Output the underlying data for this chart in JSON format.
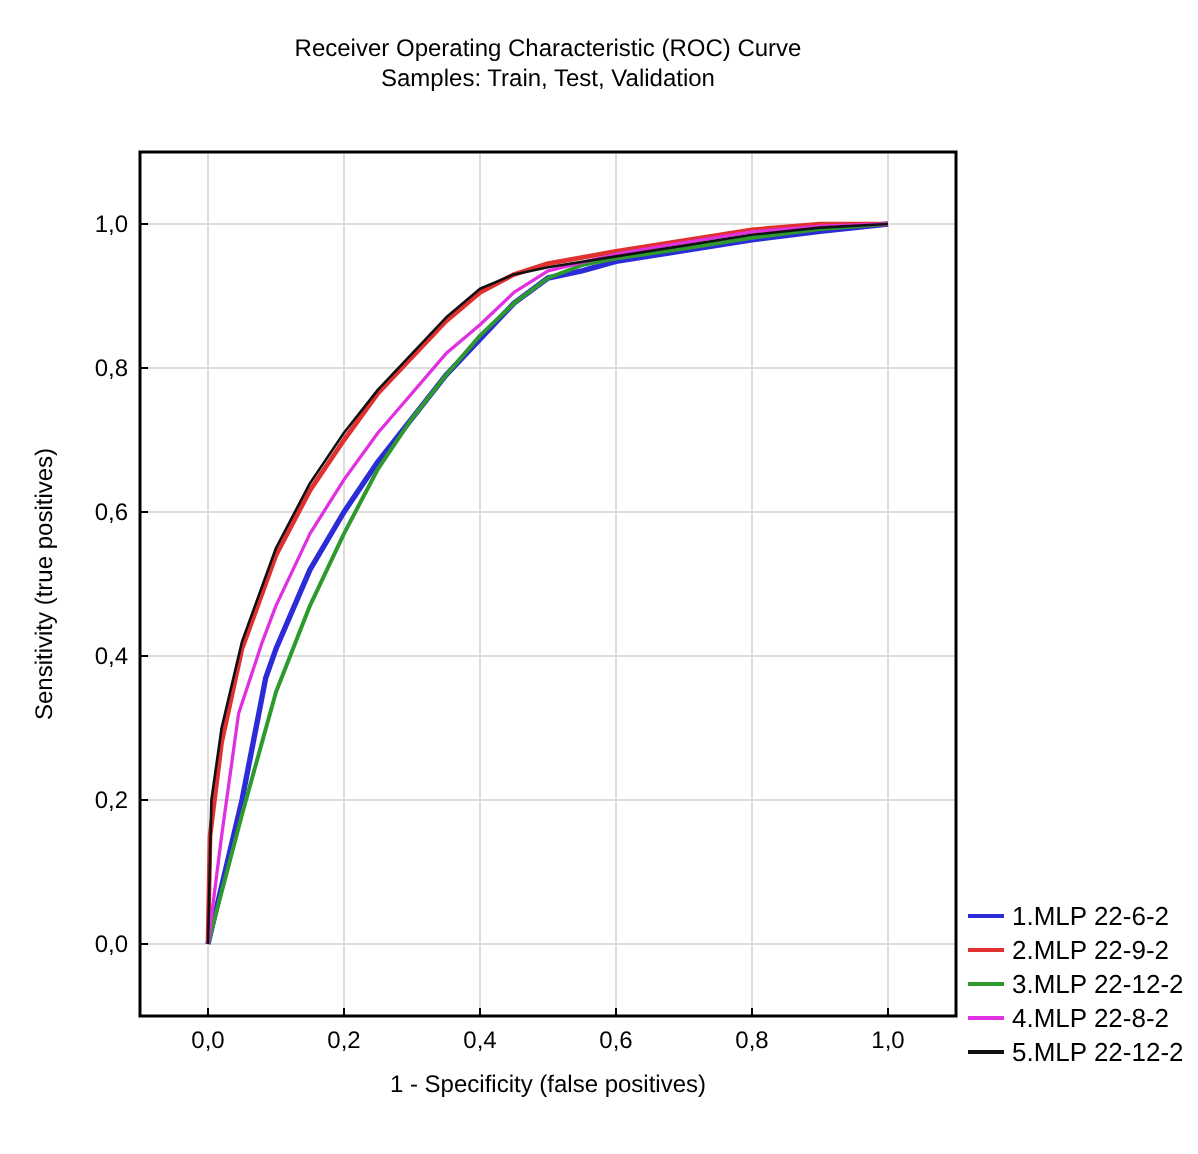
{
  "chart_data": {
    "type": "line",
    "title": "Receiver Operating Characteristic (ROC) Curve",
    "subtitle": "Samples: Train, Test, Validation",
    "xlabel": "1 - Specificity (false positives)",
    "ylabel": "Sensitivity (true positives)",
    "xlim": [
      -0.1,
      1.1
    ],
    "ylim": [
      -0.1,
      1.1
    ],
    "xticks": [
      {
        "value": 0,
        "label": "0,0"
      },
      {
        "value": 0.2,
        "label": "0,2"
      },
      {
        "value": 0.4,
        "label": "0,4"
      },
      {
        "value": 0.6,
        "label": "0,6"
      },
      {
        "value": 0.8,
        "label": "0,8"
      },
      {
        "value": 1,
        "label": "1,0"
      }
    ],
    "yticks": [
      {
        "value": 0,
        "label": "0,0"
      },
      {
        "value": 0.2,
        "label": "0,2"
      },
      {
        "value": 0.4,
        "label": "0,4"
      },
      {
        "value": 0.6,
        "label": "0,6"
      },
      {
        "value": 0.8,
        "label": "0,8"
      },
      {
        "value": 1,
        "label": "1,0"
      }
    ],
    "grid": true,
    "legend": "bottom right",
    "marker": "none",
    "line_style": "solid",
    "series": [
      {
        "name": "1.MLP 22-6-2",
        "color": "#2b2bd8",
        "x": [
          0,
          0.05,
          0.085,
          0.1,
          0.15,
          0.2,
          0.25,
          0.3,
          0.35,
          0.4,
          0.45,
          0.5,
          0.55,
          0.6,
          0.7,
          0.8,
          0.9,
          1
        ],
        "values": [
          0,
          0.2,
          0.37,
          0.41,
          0.52,
          0.6,
          0.67,
          0.73,
          0.79,
          0.84,
          0.89,
          0.925,
          0.935,
          0.948,
          0.963,
          0.978,
          0.99,
          1
        ]
      },
      {
        "name": "2.MLP 22-9-2",
        "color": "#e03030",
        "x": [
          0,
          0.003,
          0.02,
          0.05,
          0.1,
          0.15,
          0.2,
          0.25,
          0.3,
          0.35,
          0.4,
          0.45,
          0.5,
          0.6,
          0.7,
          0.8,
          0.9,
          1
        ],
        "values": [
          0,
          0.15,
          0.28,
          0.41,
          0.54,
          0.63,
          0.7,
          0.765,
          0.815,
          0.865,
          0.905,
          0.93,
          0.945,
          0.962,
          0.977,
          0.992,
          1,
          1
        ]
      },
      {
        "name": "3.MLP 22-12-2",
        "color": "#2e9a2e",
        "x": [
          0,
          0.05,
          0.1,
          0.15,
          0.2,
          0.25,
          0.3,
          0.35,
          0.4,
          0.45,
          0.5,
          0.55,
          0.6,
          0.7,
          0.8,
          0.9,
          1
        ],
        "values": [
          0,
          0.18,
          0.35,
          0.47,
          0.57,
          0.66,
          0.73,
          0.79,
          0.845,
          0.89,
          0.925,
          0.943,
          0.952,
          0.966,
          0.981,
          0.993,
          1
        ]
      },
      {
        "name": "4.MLP 22-8-2",
        "color": "#e030e0",
        "x": [
          0,
          0.02,
          0.045,
          0.08,
          0.1,
          0.15,
          0.2,
          0.25,
          0.3,
          0.35,
          0.4,
          0.45,
          0.5,
          0.6,
          0.7,
          0.8,
          0.9,
          1
        ],
        "values": [
          0,
          0.15,
          0.32,
          0.42,
          0.47,
          0.57,
          0.645,
          0.71,
          0.765,
          0.82,
          0.86,
          0.905,
          0.935,
          0.958,
          0.974,
          0.989,
          0.997,
          1
        ]
      },
      {
        "name": "5.MLP 22-12-2",
        "color": "#111111",
        "x": [
          0,
          0.005,
          0.02,
          0.05,
          0.1,
          0.15,
          0.2,
          0.25,
          0.3,
          0.35,
          0.4,
          0.45,
          0.5,
          0.6,
          0.7,
          0.8,
          0.9,
          1
        ],
        "values": [
          0,
          0.2,
          0.3,
          0.42,
          0.55,
          0.64,
          0.71,
          0.77,
          0.82,
          0.87,
          0.91,
          0.93,
          0.94,
          0.955,
          0.97,
          0.985,
          0.995,
          1
        ]
      }
    ]
  }
}
